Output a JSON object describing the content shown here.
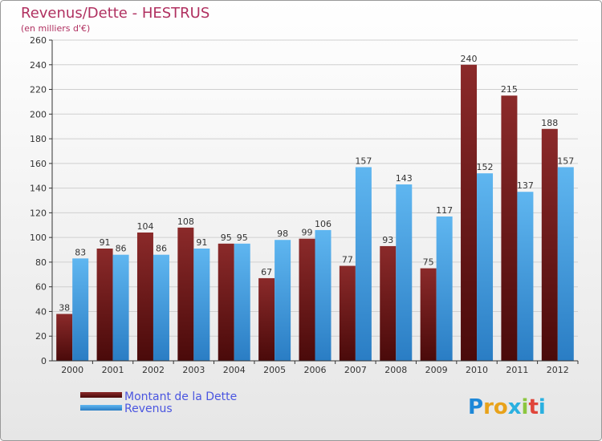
{
  "header": {
    "title": "Revenus/Dette - HESTRUS",
    "subtitle": "(en milliers d'€)"
  },
  "logo": {
    "text": "Proxiti"
  },
  "colors": {
    "dette": "#7f1d1d",
    "revenus": "#3a9be0",
    "title": "#b03060",
    "legend_text": "#4a55e0"
  },
  "chart_data": {
    "type": "bar",
    "title": "Revenus/Dette - HESTRUS",
    "subtitle": "(en milliers d'€)",
    "categories": [
      "2000",
      "2001",
      "2002",
      "2003",
      "2004",
      "2005",
      "2006",
      "2007",
      "2008",
      "2009",
      "2010",
      "2011",
      "2012"
    ],
    "series": [
      {
        "name": "Montant de la Dette",
        "values": [
          38,
          91,
          104,
          108,
          95,
          67,
          99,
          77,
          93,
          75,
          240,
          215,
          188
        ]
      },
      {
        "name": "Revenus",
        "values": [
          83,
          86,
          86,
          91,
          95,
          98,
          106,
          157,
          143,
          117,
          152,
          137,
          157
        ]
      }
    ],
    "ylim": [
      0,
      260
    ],
    "yticks": [
      0,
      20,
      40,
      60,
      80,
      100,
      120,
      140,
      160,
      180,
      200,
      220,
      240,
      260
    ],
    "grid": true,
    "legend_position": "bottom-left"
  }
}
